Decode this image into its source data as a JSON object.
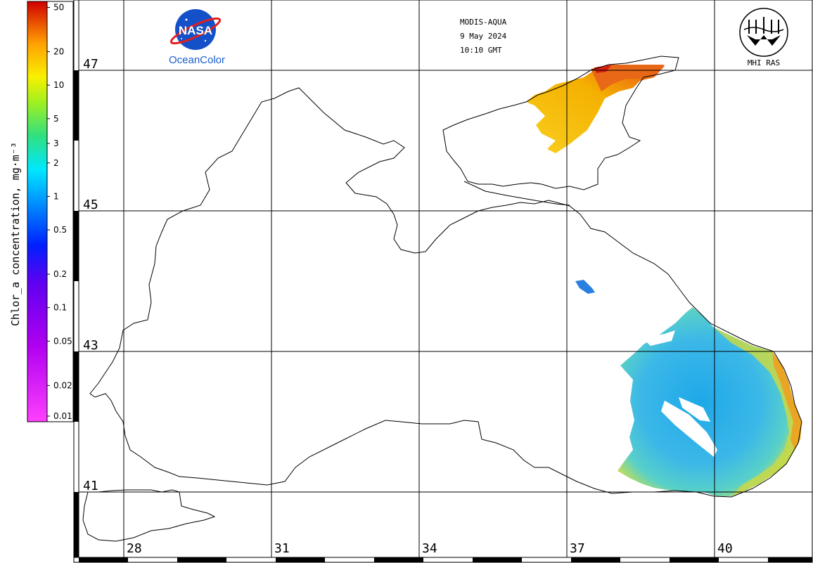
{
  "sensor": "MODIS-AQUA",
  "date": "9 May 2024",
  "time": "10:10 GMT",
  "nasa_logo_text": "NASA",
  "oceancolor_label": "OceanColor",
  "institute_label": "MHI RAS",
  "colorbar": {
    "title": "Chlor_a concentration, mg·m⁻³",
    "ticks": [
      "50",
      "20",
      "10",
      "5",
      "3",
      "2",
      "1",
      "0.5",
      "0.2",
      "0.1",
      "0.05",
      "0.02",
      "0.01"
    ],
    "scale": "log",
    "range": [
      0.01,
      60
    ]
  },
  "latitude_labels": [
    "47",
    "45",
    "43",
    "41"
  ],
  "longitude_labels": [
    "28",
    "31",
    "34",
    "37",
    "40"
  ],
  "colors": {
    "coast": "#000000",
    "grid": "#000000",
    "low_chl": "#2a8fe0",
    "mid_chl": "#6fd0c0",
    "high_chl": "#f5c000",
    "very_high_chl": "#e8501a"
  }
}
